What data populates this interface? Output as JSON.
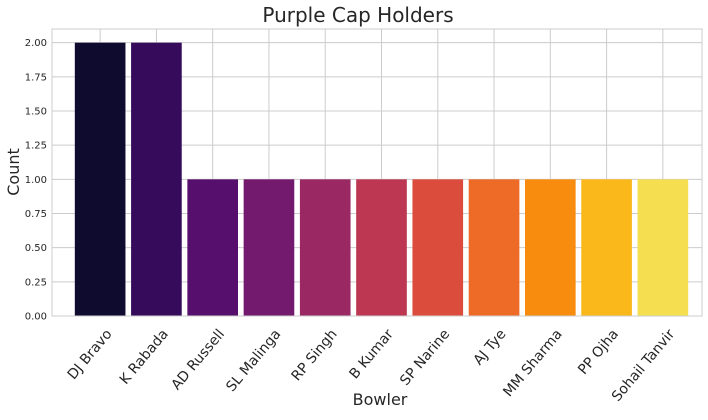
{
  "chart_data": {
    "type": "bar",
    "title": "Purple Cap Holders",
    "xlabel": "Bowler",
    "ylabel": "Count",
    "categories": [
      "DJ Bravo",
      "K Rabada",
      "AD Russell",
      "SL Malinga",
      "RP Singh",
      "B Kumar",
      "SP Narine",
      "AJ Tye",
      "MM Sharma",
      "PP Ojha",
      "Sohail Tanvir"
    ],
    "values": [
      2,
      2,
      1,
      1,
      1,
      1,
      1,
      1,
      1,
      1,
      1
    ],
    "colors": [
      "#0f0b2e",
      "#360b5c",
      "#570f6d",
      "#741a6e",
      "#992863",
      "#bd3752",
      "#db4c3c",
      "#ee6a27",
      "#f88c0e",
      "#fbb81b",
      "#f5df51"
    ],
    "ylim": [
      0,
      2.1
    ],
    "yticks": [
      0.0,
      0.25,
      0.5,
      0.75,
      1.0,
      1.25,
      1.5,
      1.75,
      2.0
    ],
    "ytick_labels": [
      "0.00",
      "0.25",
      "0.50",
      "0.75",
      "1.00",
      "1.25",
      "1.50",
      "1.75",
      "2.00"
    ],
    "grid": true
  }
}
